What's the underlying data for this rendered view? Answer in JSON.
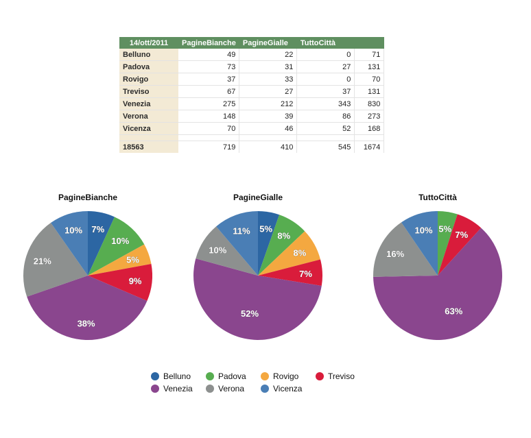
{
  "table": {
    "headers": [
      "14/ott/2011",
      "PagineBianche",
      "PagineGialle",
      "TuttoCittà",
      ""
    ],
    "rows": [
      [
        "Belluno",
        "49",
        "22",
        "0",
        "71"
      ],
      [
        "Padova",
        "73",
        "31",
        "27",
        "131"
      ],
      [
        "Rovigo",
        "37",
        "33",
        "0",
        "70"
      ],
      [
        "Treviso",
        "67",
        "27",
        "37",
        "131"
      ],
      [
        "Venezia",
        "275",
        "212",
        "343",
        "830"
      ],
      [
        "Verona",
        "148",
        "39",
        "86",
        "273"
      ],
      [
        "Vicenza",
        "70",
        "46",
        "52",
        "168"
      ]
    ],
    "total": [
      "18563",
      "719",
      "410",
      "545",
      "1674"
    ]
  },
  "colors": {
    "Belluno": "#2c66a3",
    "Padova": "#57ad50",
    "Rovigo": "#f4a840",
    "Treviso": "#d91c3b",
    "Venezia": "#8a468e",
    "Verona": "#8d908f",
    "Vicenza": "#4a7eb5",
    "header_bg": "#5f8f60",
    "rowhead_bg": "#f3ead5"
  },
  "chart_data": [
    {
      "type": "pie",
      "title": "PagineBianche",
      "categories": [
        "Belluno",
        "Padova",
        "Rovigo",
        "Treviso",
        "Venezia",
        "Verona",
        "Vicenza"
      ],
      "values": [
        49,
        73,
        37,
        67,
        275,
        148,
        70
      ],
      "labels": [
        "7%",
        "10%",
        "5%",
        "9%",
        "38%",
        "21%",
        "10%"
      ]
    },
    {
      "type": "pie",
      "title": "PagineGialle",
      "categories": [
        "Belluno",
        "Padova",
        "Rovigo",
        "Treviso",
        "Venezia",
        "Verona",
        "Vicenza"
      ],
      "values": [
        22,
        31,
        33,
        27,
        212,
        39,
        46
      ],
      "labels": [
        "5%",
        "8%",
        "8%",
        "7%",
        "52%",
        "10%",
        "11%"
      ]
    },
    {
      "type": "pie",
      "title": "TuttoCittà",
      "categories": [
        "Belluno",
        "Padova",
        "Rovigo",
        "Treviso",
        "Venezia",
        "Verona",
        "Vicenza"
      ],
      "values": [
        0,
        27,
        0,
        37,
        343,
        86,
        52
      ],
      "labels": [
        "",
        "5%",
        "",
        "7%",
        "63%",
        "16%",
        "10%"
      ]
    }
  ],
  "legend": {
    "items": [
      "Belluno",
      "Padova",
      "Rovigo",
      "Treviso",
      "Venezia",
      "Verona",
      "Vicenza"
    ],
    "placement": "bottom"
  }
}
